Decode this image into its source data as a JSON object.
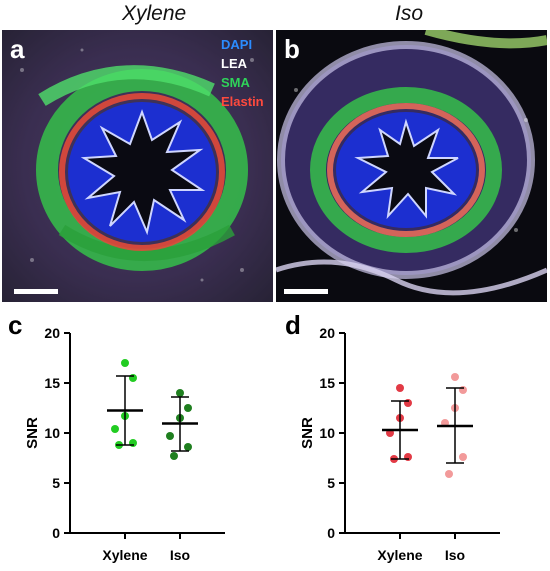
{
  "panels": {
    "a": {
      "letter": "a",
      "title": "Xylene"
    },
    "b": {
      "letter": "b",
      "title": "Iso"
    }
  },
  "stain_legend": [
    {
      "label": "DAPI",
      "color": "#2b8cff"
    },
    {
      "label": "LEA",
      "color": "#ffffff"
    },
    {
      "label": "SMA",
      "color": "#2fd35a"
    },
    {
      "label": "Elastin",
      "color": "#ff4a3d"
    }
  ],
  "chart_letters": {
    "c": "c",
    "d": "d"
  },
  "chart_data": [
    {
      "type": "scatter",
      "panel": "c",
      "ylabel": "SNR",
      "ylim": [
        0,
        20
      ],
      "yticks": [
        0,
        5,
        10,
        15,
        20
      ],
      "categories": [
        "Xylene",
        "Iso"
      ],
      "series": [
        {
          "category": "Xylene",
          "color": "#22cc22",
          "points": [
            17.0,
            15.5,
            11.7,
            10.4,
            9.0,
            8.8
          ],
          "mean": 12.25,
          "sd_upper": 15.7,
          "sd_lower": 8.8
        },
        {
          "category": "Iso",
          "color": "#1f7f1f",
          "points": [
            14.0,
            12.5,
            11.5,
            9.7,
            8.6,
            7.7
          ],
          "mean": 10.95,
          "sd_upper": 13.6,
          "sd_lower": 8.2
        }
      ]
    },
    {
      "type": "scatter",
      "panel": "d",
      "ylabel": "SNR",
      "ylim": [
        0,
        20
      ],
      "yticks": [
        0,
        5,
        10,
        15,
        20
      ],
      "categories": [
        "Xylene",
        "Iso"
      ],
      "series": [
        {
          "category": "Xylene",
          "color": "#e23a45",
          "points": [
            14.5,
            13.0,
            11.5,
            10.0,
            7.6,
            7.4
          ],
          "mean": 10.3,
          "sd_upper": 13.2,
          "sd_lower": 7.4
        },
        {
          "category": "Iso",
          "color": "#f29a9a",
          "points": [
            15.6,
            14.3,
            12.5,
            11.0,
            7.6,
            5.9
          ],
          "mean": 10.7,
          "sd_upper": 14.5,
          "sd_lower": 7.0
        }
      ]
    }
  ]
}
